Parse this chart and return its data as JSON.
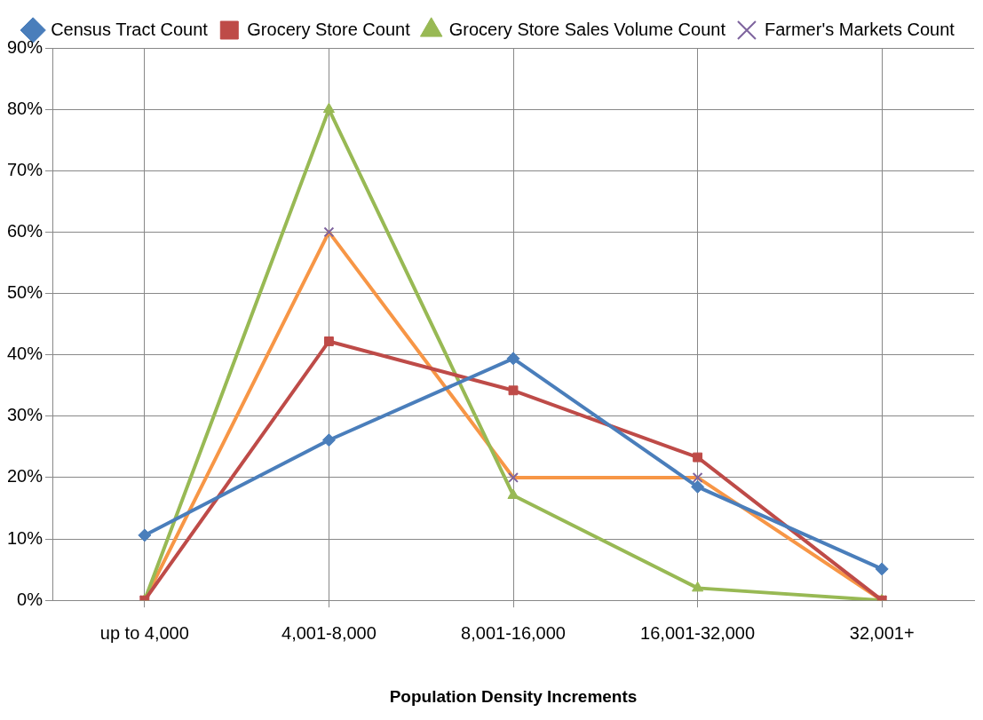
{
  "chart_data": {
    "type": "line",
    "xlabel": "Population Density Increments",
    "categories": [
      "up to 4,000",
      "4,001-8,000",
      "8,001-16,000",
      "16,001-32,000",
      "32,001+"
    ],
    "series": [
      {
        "name": "Census Tract Count",
        "color": "#4a7ebb",
        "marker": "diamond",
        "values": [
          10.6,
          26.1,
          39.4,
          18.5,
          5.1
        ]
      },
      {
        "name": "Grocery Store Count",
        "color": "#be4b48",
        "marker": "square",
        "values": [
          0,
          42.2,
          34.2,
          23.3,
          0
        ]
      },
      {
        "name": "Grocery Store Sales Volume Count",
        "color": "#98b954",
        "marker": "triangle",
        "values": [
          0,
          80,
          17.1,
          2,
          0
        ]
      },
      {
        "name": "Farmer's Markets Count",
        "color": "#f79646",
        "marker": "cross",
        "values": [
          0,
          60,
          20,
          20,
          0
        ]
      }
    ],
    "ylim": [
      0,
      90
    ],
    "yticks": [
      {
        "value": 0,
        "label": "0%"
      },
      {
        "value": 10,
        "label": "10%"
      },
      {
        "value": 20,
        "label": "20%"
      },
      {
        "value": 30,
        "label": "30%"
      },
      {
        "value": 40,
        "label": "40%"
      },
      {
        "value": 50,
        "label": "50%"
      },
      {
        "value": 60,
        "label": "60%"
      },
      {
        "value": 70,
        "label": "70%"
      },
      {
        "value": 80,
        "label": "80%"
      },
      {
        "value": 90,
        "label": "90%"
      }
    ],
    "grid": true,
    "legend": "top",
    "line_style": "solid"
  }
}
